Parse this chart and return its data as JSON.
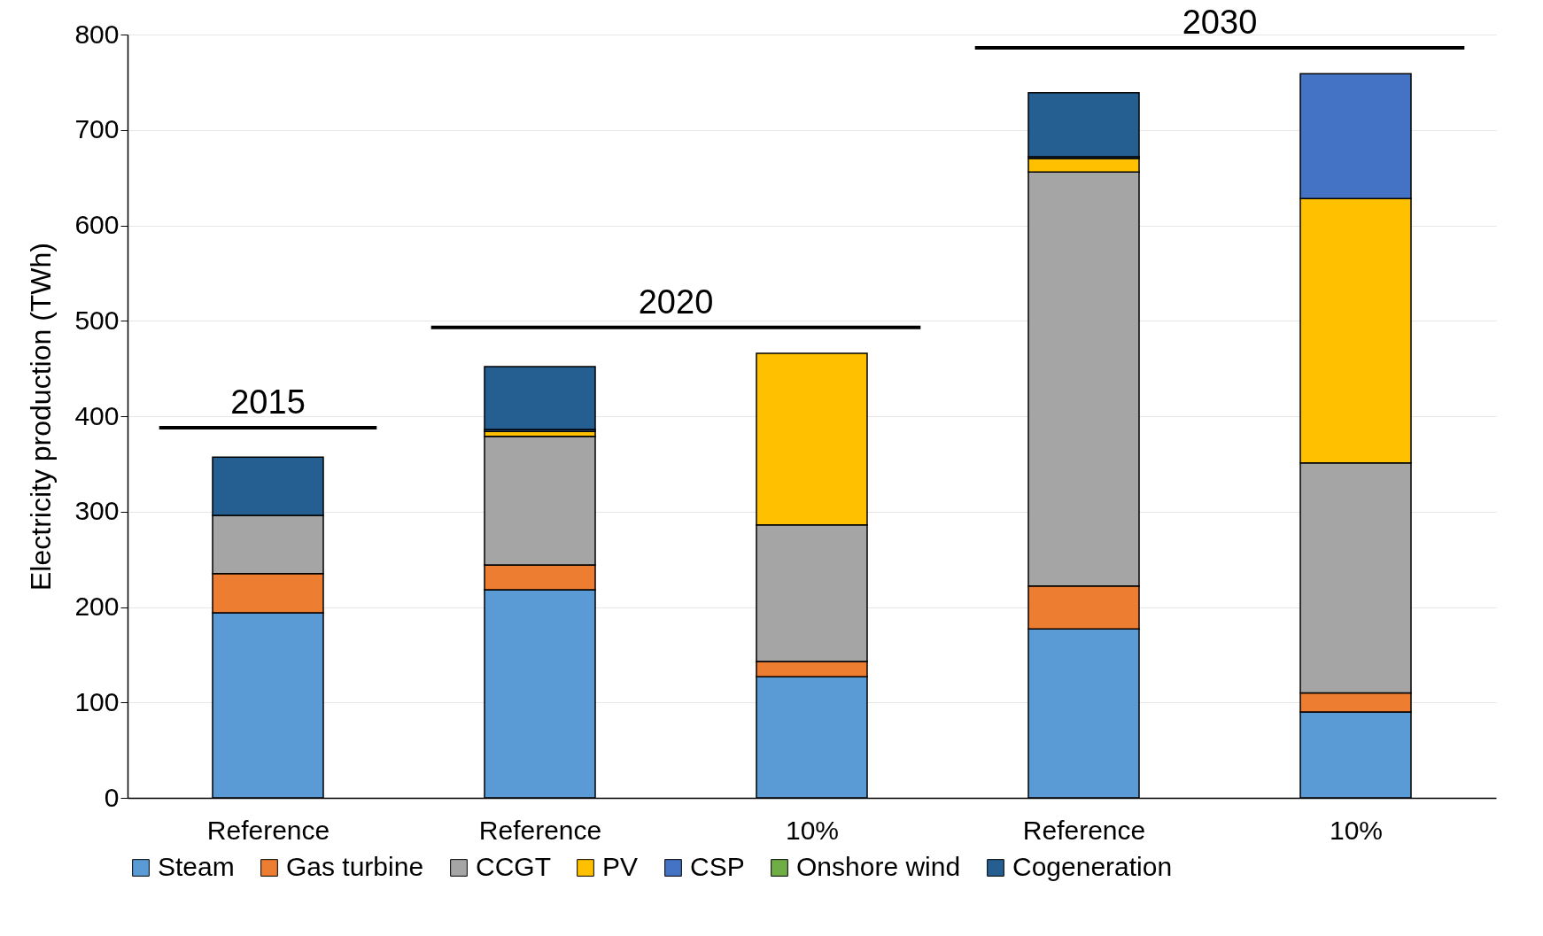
{
  "chart_data": {
    "type": "bar",
    "stacked": true,
    "ylabel": "Electricity production (TWh)",
    "categories": [
      "Reference",
      "Reference",
      "10%",
      "Reference",
      "10%"
    ],
    "series": [
      {
        "name": "Steam",
        "color": "#5b9bd5",
        "values": [
          194,
          218,
          127,
          177,
          90
        ]
      },
      {
        "name": "Gas turbine",
        "color": "#ed7d31",
        "values": [
          41,
          26,
          16,
          45,
          20
        ]
      },
      {
        "name": "CCGT",
        "color": "#a5a5a5",
        "values": [
          61,
          135,
          143,
          434,
          241
        ]
      },
      {
        "name": "PV",
        "color": "#ffc000",
        "values": [
          0,
          5,
          180,
          14,
          277
        ]
      },
      {
        "name": "CSP",
        "color": "#4472c4",
        "values": [
          0,
          2,
          0,
          2,
          131
        ]
      },
      {
        "name": "Onshore wind",
        "color": "#70ad47",
        "values": [
          0,
          0,
          0,
          0,
          0
        ]
      },
      {
        "name": "Cogeneration",
        "color": "#255e91",
        "values": [
          61,
          66,
          0,
          67,
          0
        ]
      }
    ],
    "annotations": [
      "2015",
      "2020",
      "2030"
    ],
    "ylim": [
      0,
      800
    ],
    "yticks": [
      0,
      100,
      200,
      300,
      400,
      500,
      600,
      700,
      800
    ],
    "grid": "y",
    "legend": "bottom"
  }
}
